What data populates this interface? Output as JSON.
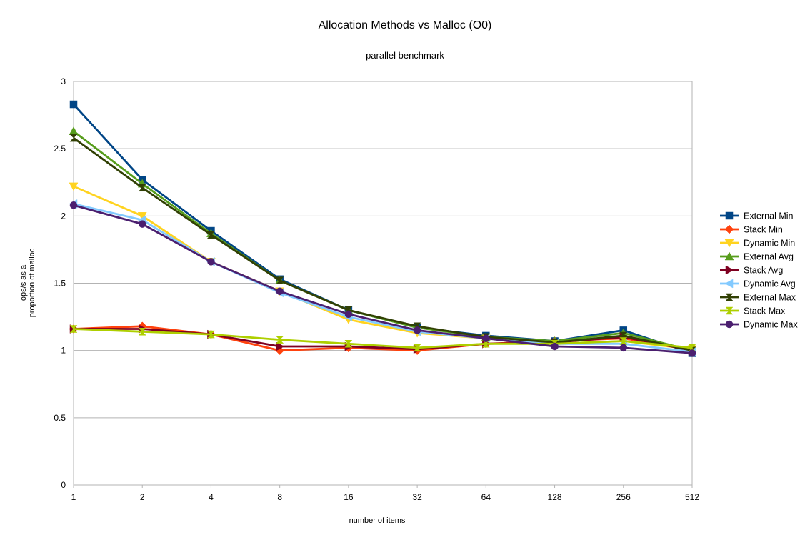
{
  "chart_data": {
    "type": "line",
    "title": "Allocation Methods vs Malloc (O0)",
    "subtitle": "parallel benchmark",
    "xlabel": "number of items",
    "ylabel_lines": [
      "ops/s as a",
      "proportion of malloc"
    ],
    "categories": [
      "1",
      "2",
      "4",
      "8",
      "16",
      "32",
      "64",
      "128",
      "256",
      "512"
    ],
    "ylim": [
      0,
      3
    ],
    "yticks": [
      "0",
      "0.5",
      "1",
      "1.5",
      "2",
      "2.5",
      "3"
    ],
    "grid": true,
    "legend_position": "right",
    "series": [
      {
        "name": "External Min",
        "color": "#004586",
        "marker": "square",
        "values": [
          2.83,
          2.27,
          1.89,
          1.53,
          1.3,
          1.17,
          1.11,
          1.07,
          1.15,
          0.98
        ]
      },
      {
        "name": "Stack Min",
        "color": "#ff420e",
        "marker": "diamond",
        "values": [
          1.16,
          1.18,
          1.12,
          1.0,
          1.02,
          1.0,
          1.05,
          1.07,
          1.09,
          1.01
        ]
      },
      {
        "name": "Dynamic Min",
        "color": "#ffd320",
        "marker": "triangle-down",
        "values": [
          2.22,
          2.0,
          1.66,
          1.44,
          1.23,
          1.13,
          1.09,
          1.05,
          1.07,
          1.01
        ]
      },
      {
        "name": "External Avg",
        "color": "#579d1c",
        "marker": "triangle-up",
        "values": [
          2.63,
          2.24,
          1.87,
          1.52,
          1.3,
          1.17,
          1.1,
          1.07,
          1.13,
          1.0
        ]
      },
      {
        "name": "Stack Avg",
        "color": "#7e0021",
        "marker": "triangle-right",
        "values": [
          1.16,
          1.16,
          1.12,
          1.03,
          1.03,
          1.01,
          1.05,
          1.06,
          1.1,
          1.0
        ]
      },
      {
        "name": "Dynamic Avg",
        "color": "#83caff",
        "marker": "triangle-left",
        "values": [
          2.09,
          1.97,
          1.66,
          1.43,
          1.25,
          1.14,
          1.09,
          1.05,
          1.05,
          0.99
        ]
      },
      {
        "name": "External Max",
        "color": "#314004",
        "marker": "bowtie",
        "values": [
          2.58,
          2.21,
          1.86,
          1.52,
          1.3,
          1.18,
          1.1,
          1.06,
          1.11,
          1.0
        ]
      },
      {
        "name": "Stack Max",
        "color": "#aecf00",
        "marker": "hourglass",
        "values": [
          1.16,
          1.14,
          1.12,
          1.08,
          1.05,
          1.02,
          1.05,
          1.05,
          1.07,
          1.02
        ]
      },
      {
        "name": "Dynamic Max",
        "color": "#4b1f6f",
        "marker": "circle",
        "values": [
          2.08,
          1.94,
          1.66,
          1.44,
          1.27,
          1.15,
          1.09,
          1.03,
          1.02,
          0.98
        ]
      }
    ]
  }
}
